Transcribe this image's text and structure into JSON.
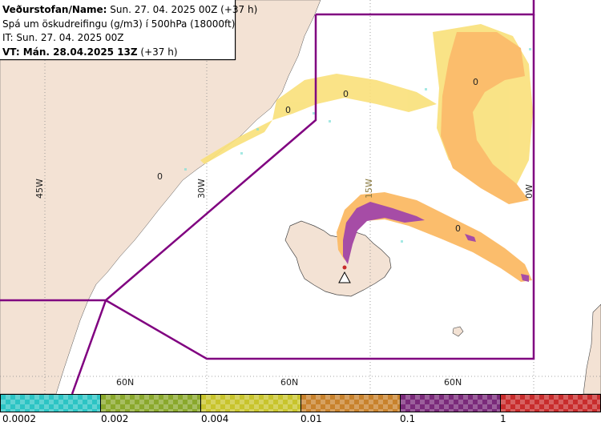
{
  "header": {
    "line1_bold": "Veðurstofan/Name:",
    "line1_rest": " Sun. 27. 04. 2025 00Z (+37 h)",
    "line2": "Spá um öskudreifingu (g/m3) í 500hPa (18000ft)",
    "line3": "IT: Sun. 27. 04. 2025 00Z",
    "line4_bold": "VT: Mán. 28.04.2025 13Z",
    "line4_rest": " (+37 h)"
  },
  "map": {
    "longitude_labels": [
      "45W",
      "30W",
      "15W",
      "0W"
    ],
    "latitude_labels": [
      "60N",
      "60N",
      "60N"
    ],
    "contour_labels": [
      "0",
      "0",
      "0",
      "0",
      "0"
    ],
    "colors": {
      "land": "#f3e2d4",
      "sea": "#ffffff",
      "boundary": "#800080",
      "ash_low": "#f9e07a",
      "ash_mid": "#fbbd6c",
      "ash_high": "#a64ca6"
    }
  },
  "legend": {
    "tick_labels": [
      "0.0002",
      "0.002",
      "0.004",
      "0.01",
      "0.1",
      "1"
    ],
    "colors": [
      "#2cc4c4",
      "#8aa82c",
      "#c8c42c",
      "#c8822c",
      "#7a2a7a",
      "#c82c2c"
    ]
  }
}
